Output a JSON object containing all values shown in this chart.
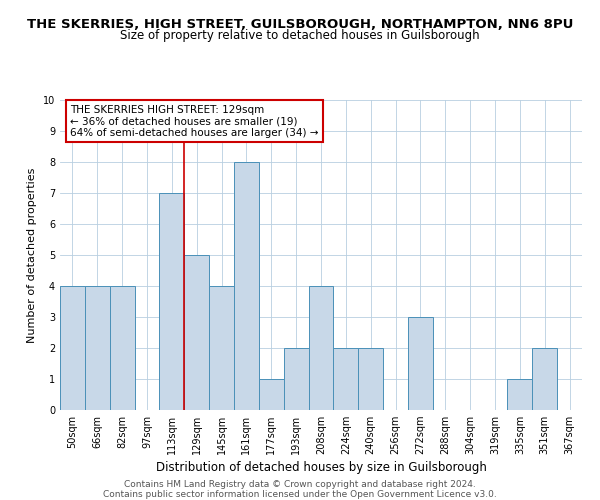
{
  "title": "THE SKERRIES, HIGH STREET, GUILSBOROUGH, NORTHAMPTON, NN6 8PU",
  "subtitle": "Size of property relative to detached houses in Guilsborough",
  "xlabel": "Distribution of detached houses by size in Guilsborough",
  "ylabel": "Number of detached properties",
  "bar_labels": [
    "50sqm",
    "66sqm",
    "82sqm",
    "97sqm",
    "113sqm",
    "129sqm",
    "145sqm",
    "161sqm",
    "177sqm",
    "193sqm",
    "208sqm",
    "224sqm",
    "240sqm",
    "256sqm",
    "272sqm",
    "288sqm",
    "304sqm",
    "319sqm",
    "335sqm",
    "351sqm",
    "367sqm"
  ],
  "bar_values": [
    4,
    4,
    4,
    0,
    7,
    5,
    4,
    8,
    1,
    2,
    4,
    2,
    2,
    0,
    3,
    0,
    0,
    0,
    1,
    2,
    0
  ],
  "bar_color": "#c8d8e8",
  "bar_edge_color": "#4a90b8",
  "vline_index": 5,
  "vline_color": "#cc0000",
  "annotation_text": "THE SKERRIES HIGH STREET: 129sqm\n← 36% of detached houses are smaller (19)\n64% of semi-detached houses are larger (34) →",
  "annotation_box_color": "#ffffff",
  "annotation_box_edge_color": "#cc0000",
  "ylim": [
    0,
    10
  ],
  "yticks": [
    0,
    1,
    2,
    3,
    4,
    5,
    6,
    7,
    8,
    9,
    10
  ],
  "footer_line1": "Contains HM Land Registry data © Crown copyright and database right 2024.",
  "footer_line2": "Contains public sector information licensed under the Open Government Licence v3.0.",
  "background_color": "#ffffff",
  "grid_color": "#b8cfe0",
  "title_fontsize": 9.5,
  "subtitle_fontsize": 8.5,
  "xlabel_fontsize": 8.5,
  "ylabel_fontsize": 8,
  "tick_fontsize": 7,
  "footer_fontsize": 6.5,
  "annotation_fontsize": 7.5
}
